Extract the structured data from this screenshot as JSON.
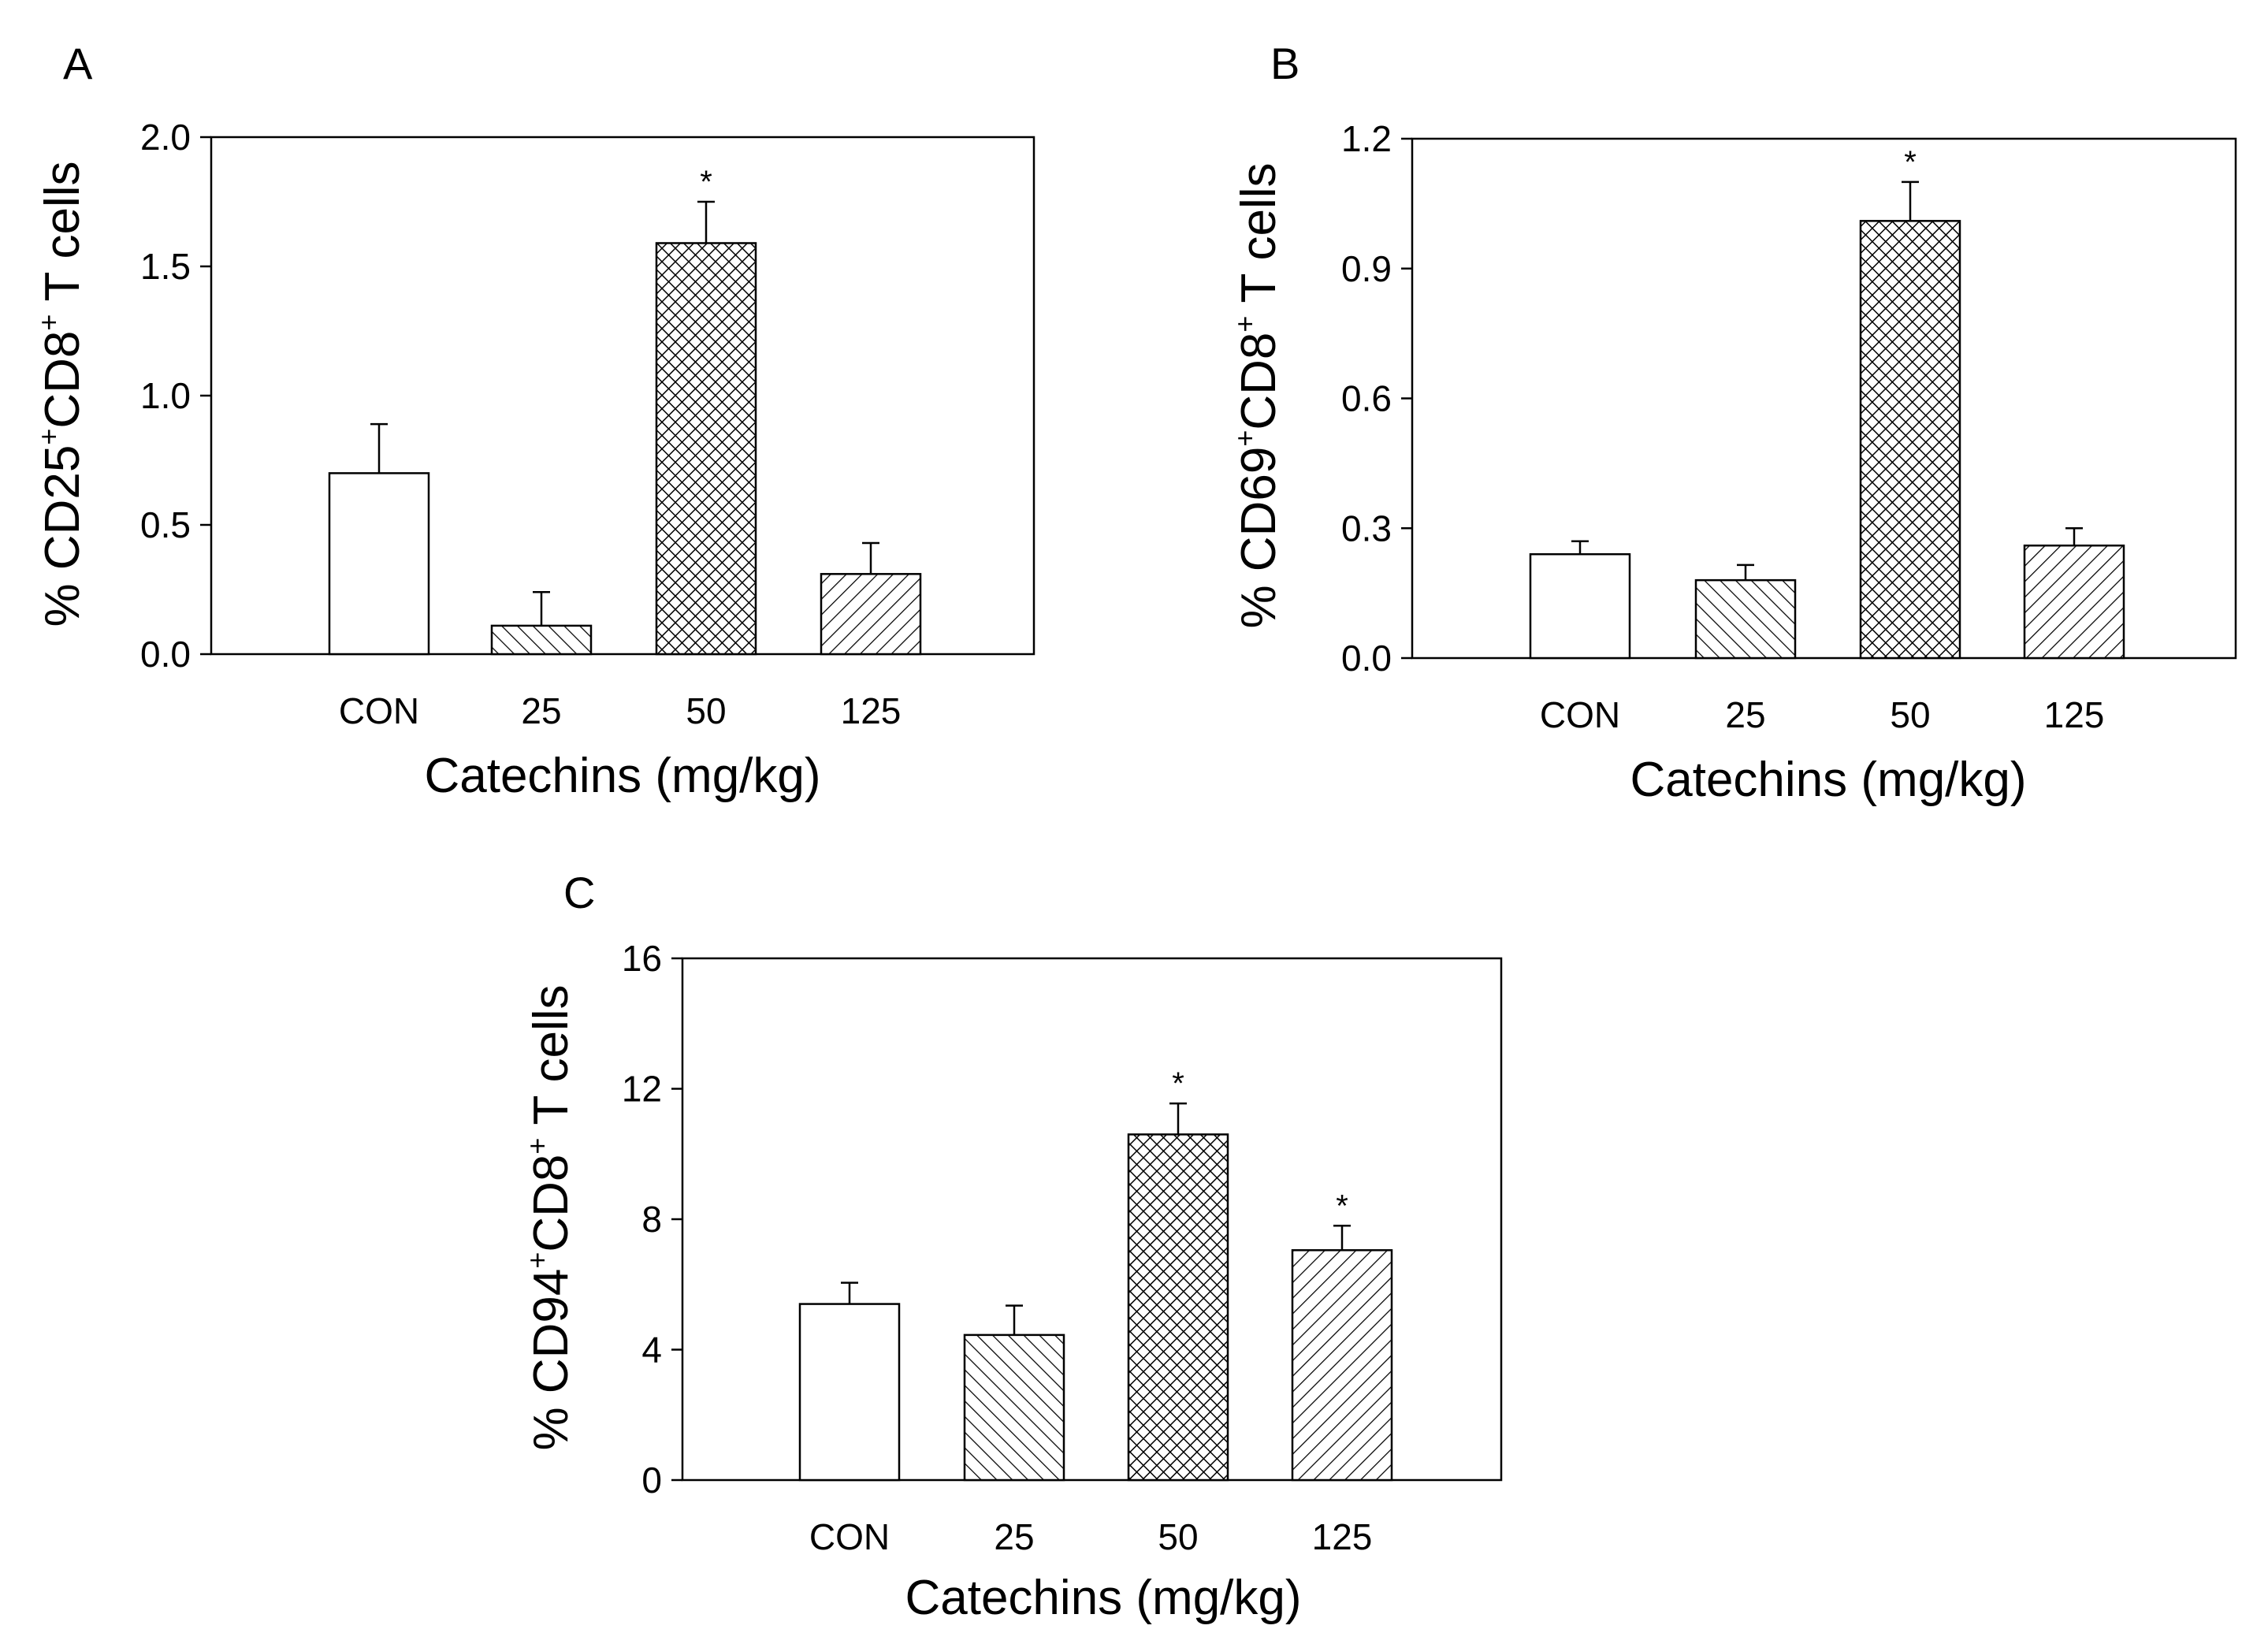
{
  "chart_data": [
    {
      "panel": "A",
      "type": "bar",
      "categories": [
        "CON",
        "25",
        "50",
        "125"
      ],
      "values": [
        0.7,
        0.11,
        1.59,
        0.31
      ],
      "errors": [
        0.19,
        0.13,
        0.16,
        0.12
      ],
      "significant": [
        "",
        "",
        "*",
        ""
      ],
      "patterns": [
        "none",
        "diag",
        "cross",
        "back"
      ],
      "ylabel": {
        "pre": "% CD25",
        "sup1": "+",
        "mid": "CD8",
        "sup2": "+",
        "post": " T cells"
      },
      "xlabel": "Catechins (mg/kg)",
      "ylim": [
        0,
        2.0
      ],
      "yticks": [
        "0.0",
        "0.5",
        "1.0",
        "1.5",
        "2.0"
      ]
    },
    {
      "panel": "B",
      "type": "bar",
      "categories": [
        "CON",
        "25",
        "50",
        "125"
      ],
      "values": [
        0.24,
        0.18,
        1.01,
        0.26
      ],
      "errors": [
        0.03,
        0.035,
        0.09,
        0.04
      ],
      "significant": [
        "",
        "",
        "*",
        ""
      ],
      "patterns": [
        "none",
        "diag",
        "cross",
        "back"
      ],
      "ylabel": {
        "pre": "% CD69",
        "sup1": "+",
        "mid": "CD8",
        "sup2": "+",
        "post": " T cells"
      },
      "xlabel": "Catechins (mg/kg)",
      "ylim": [
        0,
        1.2
      ],
      "yticks": [
        "0.0",
        "0.3",
        "0.6",
        "0.9",
        "1.2"
      ]
    },
    {
      "panel": "C",
      "type": "bar",
      "categories": [
        "CON",
        "25",
        "50",
        "125"
      ],
      "values": [
        5.4,
        4.45,
        10.6,
        7.05
      ],
      "errors": [
        0.65,
        0.9,
        0.95,
        0.75
      ],
      "significant": [
        "",
        "",
        "*",
        "*"
      ],
      "patterns": [
        "none",
        "diag",
        "cross",
        "back"
      ],
      "ylabel": {
        "pre": "% CD94",
        "sup1": "+",
        "mid": "CD8",
        "sup2": "+",
        "post": " T cells"
      },
      "xlabel": "Catechins (mg/kg)",
      "ylim": [
        0,
        16
      ],
      "yticks": [
        "0",
        "4",
        "8",
        "12",
        "16"
      ]
    }
  ]
}
